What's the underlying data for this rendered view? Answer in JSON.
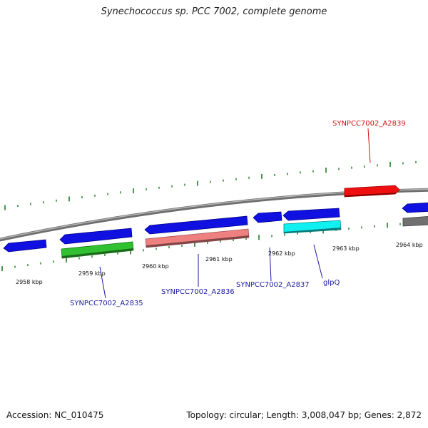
{
  "title": "Synechococcus sp. PCC 7002, complete genome",
  "footer": {
    "accession": "Accession: NC_010475",
    "topology": "Topology: circular; Length: 3,008,047 bp; Genes: 2,872"
  },
  "colors": {
    "backbone": "#8a8a8a",
    "ticks": "#1f7a1f",
    "gene": "#1010e0",
    "gene_red": "#ee1010",
    "gene_green": "#30c030",
    "gene_pink": "#ef8080",
    "gene_cyan": "#10f0f0",
    "gene_gray": "#707070",
    "label_blue": "#1a1aa6",
    "label_red": "#d01010"
  },
  "scale_labels": [
    "2958 kbp",
    "2959 kbp",
    "2960 kbp",
    "2961 kbp",
    "2962 kbp",
    "2963 kbp",
    "2964 kbp"
  ],
  "gene_labels": [
    {
      "text": "SYNPCC7002_A2835",
      "color": "label_blue"
    },
    {
      "text": "SYNPCC7002_A2836",
      "color": "label_blue"
    },
    {
      "text": "SYNPCC7002_A2837",
      "color": "label_blue"
    },
    {
      "text": "glpQ",
      "color": "label_blue"
    },
    {
      "text": "SYNPCC7002_A2839",
      "color": "label_red"
    }
  ]
}
